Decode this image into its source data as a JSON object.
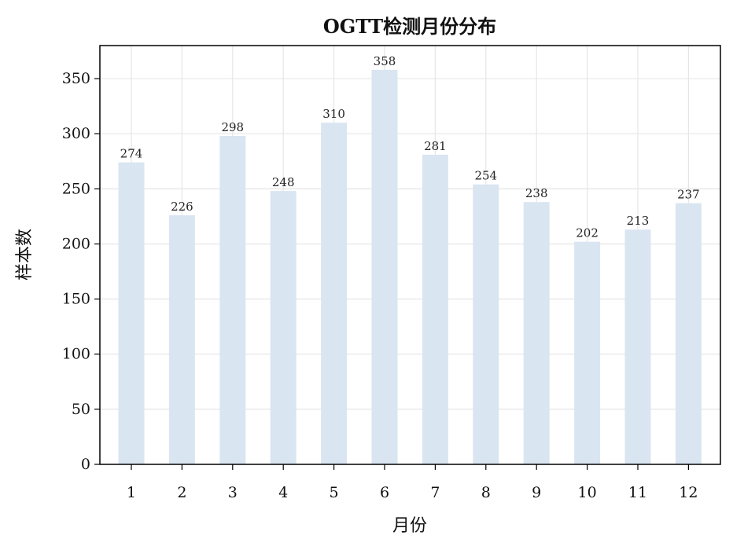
{
  "chart_data": {
    "type": "bar",
    "title": "OGTT检测月份分布",
    "xlabel": "月份",
    "ylabel": "样本数",
    "categories": [
      "1",
      "2",
      "3",
      "4",
      "5",
      "6",
      "7",
      "8",
      "9",
      "10",
      "11",
      "12"
    ],
    "values": [
      274,
      226,
      298,
      248,
      310,
      358,
      281,
      254,
      238,
      202,
      213,
      237
    ],
    "ylim": [
      0,
      380
    ],
    "yticks": [
      0,
      50,
      100,
      150,
      200,
      250,
      300,
      350
    ],
    "grid": true,
    "bar_color": "#dae5f2"
  }
}
